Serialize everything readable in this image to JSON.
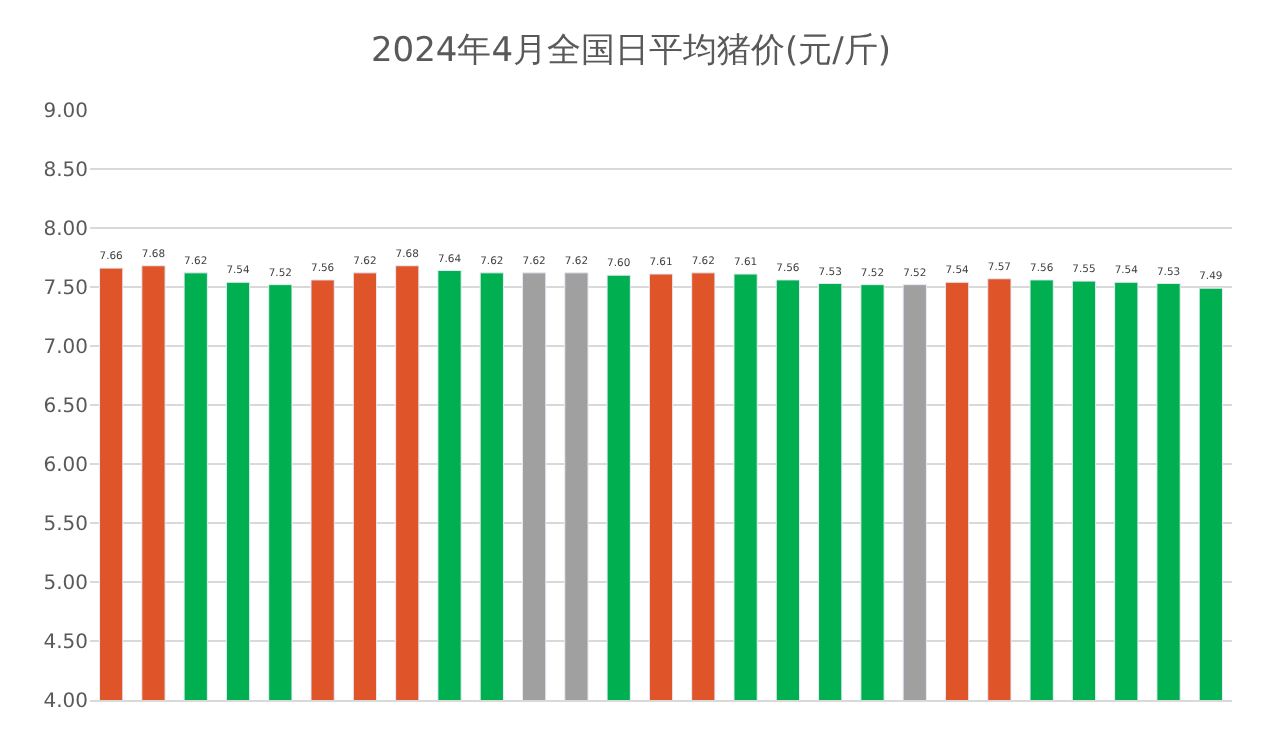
{
  "chart_data": {
    "type": "bar",
    "title": "2024年4月全国日平均猪价(元/斤)",
    "categories": [
      null,
      null,
      null,
      null,
      null,
      null,
      null,
      null,
      null,
      null,
      null,
      null,
      null,
      null,
      null,
      null,
      null,
      null,
      null,
      null,
      null,
      null,
      null,
      null,
      null,
      null,
      null
    ],
    "values": [
      7.66,
      7.68,
      7.62,
      7.54,
      7.52,
      7.56,
      7.62,
      7.68,
      7.64,
      7.62,
      7.62,
      7.62,
      7.6,
      7.61,
      7.62,
      7.61,
      7.56,
      7.53,
      7.52,
      7.52,
      7.54,
      7.57,
      7.56,
      7.55,
      7.54,
      7.53,
      7.49
    ],
    "value_labels": [
      "7.66",
      "7.68",
      "7.62",
      "7.54",
      "7.52",
      "7.56",
      "7.62",
      "7.68",
      "7.64",
      "7.62",
      "7.62",
      "7.62",
      "7.60",
      "7.61",
      "7.62",
      "7.61",
      "7.56",
      "7.53",
      "7.52",
      "7.52",
      "7.54",
      "7.57",
      "7.56",
      "7.55",
      "7.54",
      "7.53",
      "7.49"
    ],
    "colors": [
      "#e0542a",
      "#e0542a",
      "#00b050",
      "#00b050",
      "#00b050",
      "#e0542a",
      "#e0542a",
      "#e0542a",
      "#00b050",
      "#00b050",
      "#a0a0a0",
      "#a0a0a0",
      "#00b050",
      "#e0542a",
      "#e0542a",
      "#00b050",
      "#00b050",
      "#00b050",
      "#00b050",
      "#a0a0a0",
      "#e0542a",
      "#e0542a",
      "#00b050",
      "#00b050",
      "#00b050",
      "#00b050",
      "#00b050"
    ],
    "ylim": [
      4,
      9
    ],
    "yticks": [
      {
        "value": 4,
        "label": "4.00"
      },
      {
        "value": 4.5,
        "label": "4.50"
      },
      {
        "value": 5,
        "label": "5.00"
      },
      {
        "value": 5.5,
        "label": "5.50"
      },
      {
        "value": 6,
        "label": "6.00"
      },
      {
        "value": 6.5,
        "label": "6.50"
      },
      {
        "value": 7,
        "label": "7.00"
      },
      {
        "value": 7.5,
        "label": "7.50"
      },
      {
        "value": 8,
        "label": "8.00"
      },
      {
        "value": 8.5,
        "label": "8.50"
      },
      {
        "value": 9,
        "label": "9.00"
      }
    ],
    "grid": "y"
  }
}
